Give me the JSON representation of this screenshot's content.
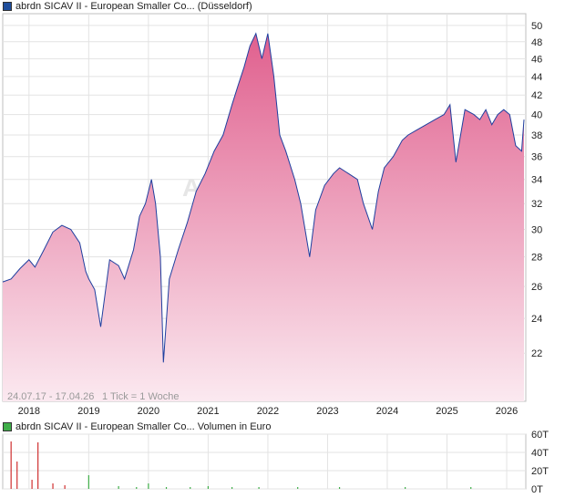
{
  "legend_top": {
    "label": "abrdn SICAV II - European Smaller Co... (Düsseldorf)",
    "color": "#1f4e9c"
  },
  "legend_bottom": {
    "label": "abrdn SICAV II - European Smaller Co... Volumen in Euro",
    "color": "#3fae49"
  },
  "watermark": "A",
  "info": {
    "date_range": "24.07.17 - 17.04.26",
    "tick_note": "1 Tick = 1 Woche"
  },
  "colors": {
    "line": "#1f3f9f",
    "area_top": "#e0608e",
    "area_bottom": "#fbe9f0",
    "vol_up": "#3fae49",
    "vol_down": "#d03030"
  },
  "chart_data": [
    {
      "type": "area",
      "ylim": [
        19.5,
        51.5
      ],
      "y_scale": "log",
      "y_ticks": [
        22,
        24,
        26,
        28,
        30,
        32,
        34,
        36,
        38,
        40,
        42,
        44,
        46,
        48,
        50
      ],
      "x_ticks": [
        "2018",
        "2019",
        "2020",
        "2021",
        "2022",
        "2023",
        "2024",
        "2025",
        "2026"
      ],
      "grid": true,
      "series": [
        {
          "x": [
            2017.56,
            2017.7,
            2017.85,
            2018.0,
            2018.1,
            2018.25,
            2018.4,
            2018.55,
            2018.7,
            2018.85,
            2018.95,
            2019.0,
            2019.1,
            2019.2,
            2019.35,
            2019.5,
            2019.6,
            2019.75,
            2019.85,
            2019.95,
            2020.05,
            2020.12,
            2020.2,
            2020.25,
            2020.35,
            2020.5,
            2020.65,
            2020.8,
            2020.95,
            2021.1,
            2021.25,
            2021.4,
            2021.5,
            2021.6,
            2021.7,
            2021.8,
            2021.9,
            2022.0,
            2022.1,
            2022.2,
            2022.3,
            2022.45,
            2022.55,
            2022.7,
            2022.8,
            2022.95,
            2023.1,
            2023.2,
            2023.35,
            2023.5,
            2023.6,
            2023.75,
            2023.85,
            2023.95,
            2024.1,
            2024.25,
            2024.35,
            2024.5,
            2024.65,
            2024.8,
            2024.95,
            2025.05,
            2025.15,
            2025.3,
            2025.45,
            2025.55,
            2025.65,
            2025.75,
            2025.85,
            2025.95,
            2026.05,
            2026.15,
            2026.25,
            2026.29
          ],
          "y": [
            26.3,
            26.5,
            27.2,
            27.8,
            27.3,
            28.5,
            29.8,
            30.3,
            30.0,
            29.0,
            27.0,
            26.5,
            25.8,
            23.5,
            27.8,
            27.4,
            26.5,
            28.5,
            31.0,
            32.0,
            34.0,
            32.0,
            28.0,
            21.5,
            26.5,
            28.5,
            30.5,
            33.0,
            34.5,
            36.5,
            38.0,
            41.0,
            43.0,
            45.0,
            47.5,
            49.0,
            46.0,
            49.0,
            44.0,
            38.0,
            36.5,
            34.0,
            32.0,
            28.0,
            31.5,
            33.5,
            34.5,
            35.0,
            34.5,
            34.0,
            32.0,
            30.0,
            33.0,
            35.0,
            36.0,
            37.5,
            38.0,
            38.5,
            39.0,
            39.5,
            40.0,
            41.0,
            35.5,
            40.5,
            40.0,
            39.5,
            40.5,
            39.0,
            40.0,
            40.5,
            40.0,
            37.0,
            36.5,
            39.5
          ]
        }
      ]
    },
    {
      "type": "bar",
      "ylim": [
        0,
        60
      ],
      "y_ticks": [
        "0T",
        "20T",
        "40T",
        "60T"
      ],
      "series": [
        {
          "x": [
            2017.7,
            2017.8,
            2018.05,
            2018.15,
            2018.4,
            2018.6
          ],
          "values": [
            52,
            30,
            10,
            51,
            6,
            4
          ],
          "color": "#d03030"
        },
        {
          "x": [
            2019.0,
            2019.5,
            2019.8,
            2020.0,
            2020.3,
            2020.7,
            2021.0,
            2021.4,
            2021.85,
            2022.5,
            2023.2,
            2024.3,
            2025.4
          ],
          "values": [
            15,
            3,
            2,
            6,
            2,
            2,
            3,
            2,
            2,
            2,
            2,
            2,
            2
          ],
          "color": "#3fae49"
        }
      ]
    }
  ]
}
